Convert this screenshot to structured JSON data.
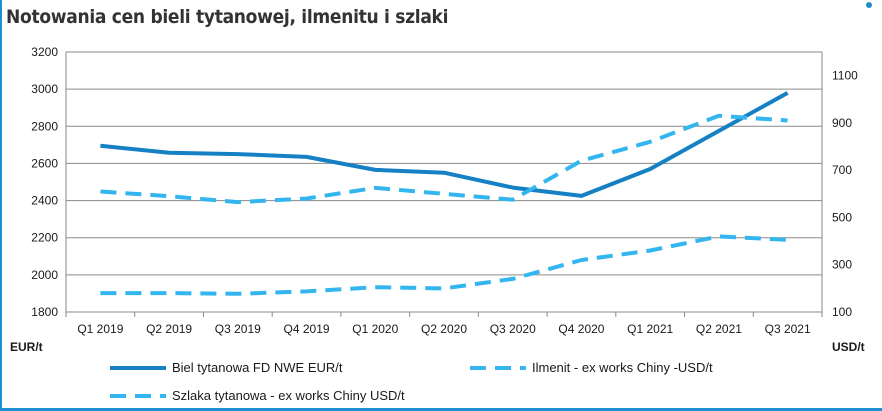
{
  "title": "Notowania cen bieli tytanowej, ilmenitu i szlaki",
  "chart_data": {
    "type": "line",
    "categories": [
      "Q1 2019",
      "Q2 2019",
      "Q3 2019",
      "Q4 2019",
      "Q1 2020",
      "Q2 2020",
      "Q3 2020",
      "Q4 2020",
      "Q1 2021",
      "Q2 2021",
      "Q3 2021"
    ],
    "ylabel_left": "EUR/t",
    "ylabel_right": "USD/t",
    "ylim_left": [
      1800,
      3200
    ],
    "yticks_left": [
      1800,
      2000,
      2200,
      2400,
      2600,
      2800,
      3000,
      3200
    ],
    "ylim_right": [
      100,
      1200
    ],
    "yticks_right": [
      100,
      300,
      500,
      700,
      900,
      1100
    ],
    "grid": true,
    "legend_position": "bottom",
    "series": [
      {
        "name": "Biel tytanowa FD NWE EUR/t",
        "axis": "left",
        "style": "solid",
        "color": "#1580c4",
        "values": [
          2695,
          2657,
          2650,
          2635,
          2565,
          2550,
          2470,
          2425,
          2570,
          2775,
          2980
        ]
      },
      {
        "name": "Ilmenit - ex works Chiny -USD/t",
        "axis": "right",
        "style": "dashed",
        "color": "#33b5ef",
        "values": [
          180,
          180,
          177,
          187,
          205,
          200,
          240,
          320,
          360,
          420,
          405
        ]
      },
      {
        "name": "Szlaka tytanowa - ex works Chiny USD/t",
        "axis": "right",
        "style": "dashed",
        "color": "#33b5ef",
        "values": [
          610,
          590,
          565,
          580,
          625,
          600,
          575,
          740,
          820,
          930,
          910
        ]
      }
    ]
  }
}
